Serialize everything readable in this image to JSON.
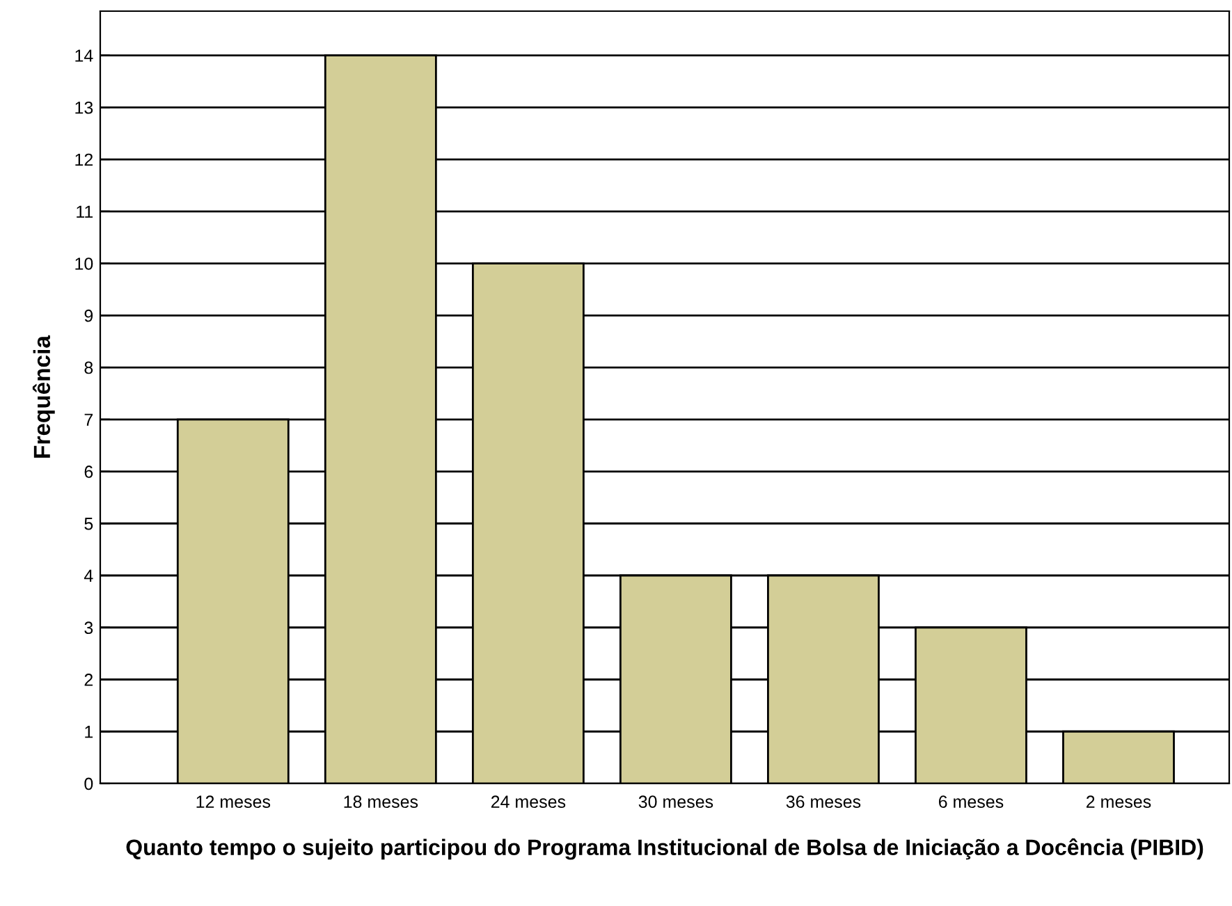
{
  "chart_data": {
    "type": "bar",
    "xlabel": "Quanto tempo o sujeito participou do Programa Institucional de Bolsa de Iniciação a Docência (PIBID)",
    "ylabel": "Frequência",
    "categories": [
      "12 meses",
      "18 meses",
      "24 meses",
      "30 meses",
      "36 meses",
      "6 meses",
      "2 meses"
    ],
    "values": [
      7,
      14,
      10,
      4,
      4,
      3,
      1
    ],
    "color": "#d3ce97",
    "ylim": [
      0,
      14.85
    ],
    "yticks": [
      0,
      1,
      2,
      3,
      4,
      5,
      6,
      7,
      8,
      9,
      10,
      11,
      12,
      13,
      14
    ],
    "grid": "y"
  }
}
